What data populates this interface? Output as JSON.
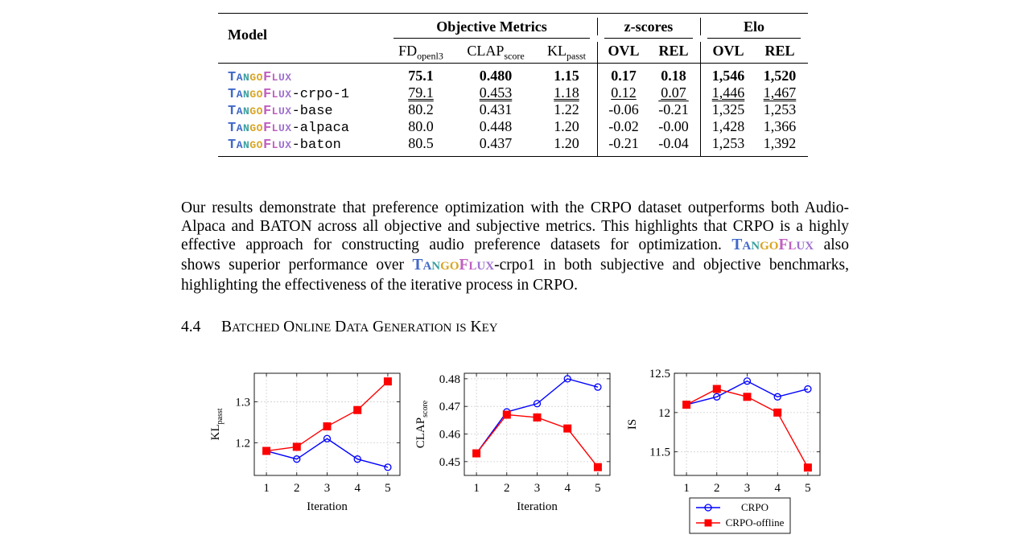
{
  "table": {
    "header": {
      "model": "Model",
      "objective": "Objective Metrics",
      "zscores": "z-scores",
      "elo": "Elo",
      "fd": "FD",
      "fd_sub": "openl3",
      "clap": "CLAP",
      "clap_sub": "score",
      "kl": "KL",
      "kl_sub": "passt",
      "ovl": "OVL",
      "rel": "REL",
      "ovl2": "OVL",
      "rel2": "REL"
    },
    "brand": "TangoFlux",
    "rows": [
      {
        "suffix": "",
        "fd": "75.1",
        "clap": "0.480",
        "kl": "1.15",
        "z_ovl": "0.17",
        "z_rel": "0.18",
        "elo_ovl": "1,546",
        "elo_rel": "1,520"
      },
      {
        "suffix": "-crpo-1",
        "fd": "79.1",
        "clap": "0.453",
        "kl": "1.18",
        "z_ovl": "0.12",
        "z_rel": "0.07",
        "elo_ovl": "1,446",
        "elo_rel": "1,467"
      },
      {
        "suffix": "-base",
        "fd": "80.2",
        "clap": "0.431",
        "kl": "1.22",
        "z_ovl": "-0.06",
        "z_rel": "-0.21",
        "elo_ovl": "1,325",
        "elo_rel": "1,253"
      },
      {
        "suffix": "-alpaca",
        "fd": "80.0",
        "clap": "0.448",
        "kl": "1.20",
        "z_ovl": "-0.02",
        "z_rel": "-0.00",
        "elo_ovl": "1,428",
        "elo_rel": "1,366"
      },
      {
        "suffix": "-baton",
        "fd": "80.5",
        "clap": "0.437",
        "kl": "1.20",
        "z_ovl": "-0.21",
        "z_rel": "-0.04",
        "elo_ovl": "1,253",
        "elo_rel": "1,392"
      }
    ]
  },
  "paragraph": {
    "l1": "Our results demonstrate that preference optimization with the CRPO dataset outperforms both Audio-",
    "l2": "Alpaca and BATON across all objective and subjective metrics. This highlights that CRPO is a highly",
    "l3a": "effective approach for constructing audio preference datasets for optimization.",
    "l3b": "also",
    "l4a": "shows superior performance over",
    "l4b": "-crpo1 in both subjective and objective benchmarks,",
    "l5": "highlighting the effectiveness of the iterative process in CRPO."
  },
  "section": {
    "number": "4.4",
    "title": "Batched Online Data Generation is Key"
  },
  "chart_data": [
    {
      "type": "line",
      "x": [
        1,
        2,
        3,
        4,
        5
      ],
      "xlabel": "Iteration",
      "ylabel": "KL",
      "ylabel_sub": "passt",
      "ylim": [
        1.12,
        1.37
      ],
      "yticks": [
        1.2,
        1.3
      ],
      "ytick_labels": [
        "1.2",
        "1.3"
      ],
      "grid": true,
      "series": [
        {
          "name": "CRPO",
          "color": "#0000ff",
          "marker": "circle",
          "values": [
            1.18,
            1.16,
            1.21,
            1.16,
            1.14
          ]
        },
        {
          "name": "CRPO-offline",
          "color": "#ff0000",
          "marker": "square",
          "values": [
            1.18,
            1.19,
            1.24,
            1.28,
            1.35
          ]
        }
      ]
    },
    {
      "type": "line",
      "x": [
        1,
        2,
        3,
        4,
        5
      ],
      "xlabel": "Iteration",
      "ylabel": "CLAP",
      "ylabel_sub": "score",
      "ylim": [
        0.445,
        0.482
      ],
      "yticks": [
        0.45,
        0.46,
        0.47,
        0.48
      ],
      "ytick_labels": [
        "0.45",
        "0.46",
        "0.47",
        "0.48"
      ],
      "grid": true,
      "series": [
        {
          "name": "CRPO",
          "color": "#0000ff",
          "marker": "circle",
          "values": [
            0.453,
            0.468,
            0.471,
            0.48,
            0.477
          ]
        },
        {
          "name": "CRPO-offline",
          "color": "#ff0000",
          "marker": "square",
          "values": [
            0.453,
            0.467,
            0.466,
            0.462,
            0.448
          ]
        }
      ]
    },
    {
      "type": "line",
      "x": [
        1,
        2,
        3,
        4,
        5
      ],
      "xlabel": "",
      "ylabel": "IS",
      "ylabel_sub": "",
      "ylim": [
        11.2,
        12.5
      ],
      "yticks": [
        11.5,
        12,
        12.5
      ],
      "ytick_labels": [
        "11.5",
        "12",
        "12.5"
      ],
      "grid": true,
      "legend": "below",
      "series": [
        {
          "name": "CRPO",
          "color": "#0000ff",
          "marker": "circle",
          "values": [
            12.1,
            12.2,
            12.4,
            12.2,
            12.3
          ]
        },
        {
          "name": "CRPO-offline",
          "color": "#ff0000",
          "marker": "square",
          "values": [
            12.1,
            12.3,
            12.2,
            12.0,
            11.3
          ]
        }
      ]
    }
  ]
}
